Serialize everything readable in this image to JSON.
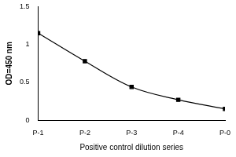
{
  "chart_data": {
    "type": "line",
    "categories": [
      "P-1",
      "P-2",
      "P-3",
      "P-4",
      "P-0"
    ],
    "values": [
      1.15,
      0.78,
      0.44,
      0.27,
      0.15
    ],
    "color": "#000000",
    "ylim": [
      0,
      1.5
    ],
    "yticks": [
      0,
      0.5,
      1,
      1.5
    ],
    "grid": false,
    "marker": "square",
    "line_style": "solid",
    "xlabel": "Positive control dilution series",
    "ylabel": "OD=450 nm"
  }
}
